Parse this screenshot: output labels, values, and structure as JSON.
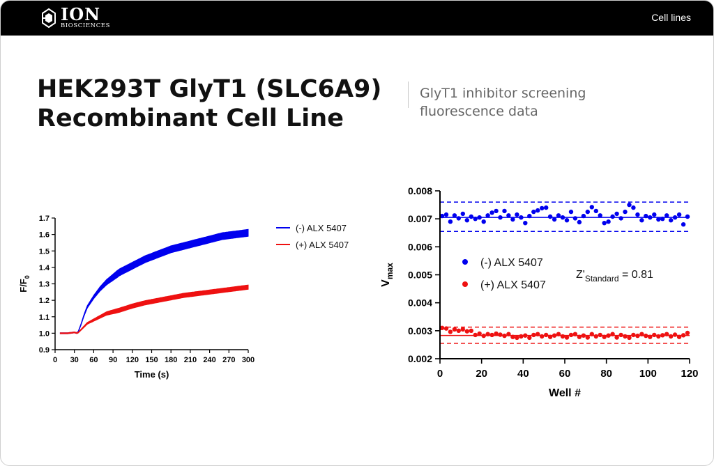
{
  "header": {
    "logo_main": "ION",
    "logo_sub": "BIOSCIENCES",
    "nav_link": "Cell lines"
  },
  "page": {
    "title_line1": "HEK293T GlyT1 (SLC6A9)",
    "title_line2": "Recombinant Cell Line",
    "subtitle_line1": "GlyT1 inhibitor screening",
    "subtitle_line2": "fluorescence data"
  },
  "colors": {
    "blue": "#0000ee",
    "red": "#ee1111",
    "axis": "#000000",
    "topbar": "#000000"
  },
  "chart_data": [
    {
      "type": "line",
      "xlabel": "Time (s)",
      "ylabel": "F/F0",
      "ylabel_main": "F/F",
      "ylabel_sub": "0",
      "xlim": [
        0,
        300
      ],
      "ylim": [
        0.9,
        1.7
      ],
      "xticks": [
        0,
        30,
        60,
        90,
        120,
        150,
        180,
        210,
        240,
        270,
        300
      ],
      "yticks": [
        "0.9",
        "1.0",
        "1.1",
        "1.2",
        "1.3",
        "1.4",
        "1.5",
        "1.6",
        "1.7"
      ],
      "grid": false,
      "legend_position": "right",
      "series": [
        {
          "name": "(-) ALX 5407",
          "color": "#0000ee",
          "x": [
            8,
            20,
            30,
            35,
            40,
            45,
            50,
            60,
            70,
            80,
            90,
            100,
            120,
            140,
            160,
            180,
            200,
            220,
            240,
            260,
            280,
            300
          ],
          "y": [
            1.0,
            1.0,
            1.005,
            1.0,
            1.05,
            1.11,
            1.16,
            1.22,
            1.27,
            1.31,
            1.34,
            1.37,
            1.41,
            1.45,
            1.48,
            1.51,
            1.53,
            1.55,
            1.57,
            1.59,
            1.6,
            1.61
          ],
          "spread": 0.018
        },
        {
          "name": "(+) ALX 5407",
          "color": "#ee1111",
          "x": [
            8,
            20,
            30,
            35,
            40,
            45,
            50,
            60,
            70,
            80,
            90,
            100,
            120,
            140,
            160,
            180,
            200,
            220,
            240,
            260,
            280,
            300
          ],
          "y": [
            1.0,
            1.0,
            1.005,
            1.0,
            1.02,
            1.04,
            1.06,
            1.08,
            1.1,
            1.12,
            1.13,
            1.14,
            1.165,
            1.185,
            1.2,
            1.215,
            1.23,
            1.24,
            1.25,
            1.26,
            1.27,
            1.28
          ],
          "spread": 0.01
        }
      ]
    },
    {
      "type": "scatter",
      "xlabel": "Well #",
      "ylabel": "Vmax",
      "ylabel_main": "V",
      "ylabel_sub": "max",
      "xlim": [
        0,
        120
      ],
      "ylim": [
        0.002,
        0.008
      ],
      "xticks": [
        0,
        20,
        40,
        60,
        80,
        100,
        120
      ],
      "yticks": [
        "0.002",
        "0.003",
        "0.004",
        "0.005",
        "0.006",
        "0.007",
        "0.008"
      ],
      "grid": false,
      "legend_position": "center",
      "annotation": {
        "main": "Z'",
        "sub": "Standard",
        "rest": " = 0.81"
      },
      "series": [
        {
          "name": "(-) ALX 5407",
          "color": "#0000ee",
          "mean": 0.00705,
          "upper": 0.0076,
          "lower": 0.00655,
          "x": [
            1,
            3,
            5,
            7,
            9,
            11,
            13,
            15,
            17,
            19,
            21,
            23,
            25,
            27,
            29,
            31,
            33,
            35,
            37,
            39,
            41,
            43,
            45,
            47,
            49,
            51,
            53,
            55,
            57,
            59,
            61,
            63,
            65,
            67,
            69,
            71,
            73,
            75,
            77,
            79,
            81,
            83,
            85,
            87,
            89,
            91,
            93,
            95,
            97,
            99,
            101,
            103,
            105,
            107,
            109,
            111,
            113,
            115,
            117,
            119
          ],
          "y": [
            0.0071,
            0.00715,
            0.0069,
            0.00712,
            0.00702,
            0.00718,
            0.00695,
            0.00708,
            0.007,
            0.00705,
            0.0069,
            0.00712,
            0.00722,
            0.00728,
            0.00705,
            0.00728,
            0.00712,
            0.00698,
            0.00715,
            0.00705,
            0.00685,
            0.0071,
            0.00725,
            0.0073,
            0.00738,
            0.0074,
            0.00708,
            0.00698,
            0.00712,
            0.00705,
            0.00695,
            0.00725,
            0.00702,
            0.00688,
            0.0071,
            0.00725,
            0.00742,
            0.00728,
            0.00712,
            0.00685,
            0.0069,
            0.00708,
            0.00718,
            0.00702,
            0.00725,
            0.0075,
            0.0074,
            0.00715,
            0.00695,
            0.0071,
            0.00705,
            0.00715,
            0.00698,
            0.007,
            0.00712,
            0.00695,
            0.00705,
            0.00715,
            0.0068,
            0.00708
          ]
        },
        {
          "name": "(+) ALX 5407",
          "color": "#ee1111",
          "mean": 0.00283,
          "upper": 0.00313,
          "lower": 0.00255,
          "x": [
            1,
            3,
            5,
            7,
            9,
            11,
            13,
            15,
            17,
            19,
            21,
            23,
            25,
            27,
            29,
            31,
            33,
            35,
            37,
            39,
            41,
            43,
            45,
            47,
            49,
            51,
            53,
            55,
            57,
            59,
            61,
            63,
            65,
            67,
            69,
            71,
            73,
            75,
            77,
            79,
            81,
            83,
            85,
            87,
            89,
            91,
            93,
            95,
            97,
            99,
            101,
            103,
            105,
            107,
            109,
            111,
            113,
            115,
            117,
            119
          ],
          "y": [
            0.0031,
            0.00308,
            0.00296,
            0.00305,
            0.003,
            0.00305,
            0.00298,
            0.003,
            0.00285,
            0.0029,
            0.00282,
            0.00288,
            0.00285,
            0.0029,
            0.00286,
            0.00282,
            0.00288,
            0.00278,
            0.00275,
            0.0028,
            0.00283,
            0.00275,
            0.00285,
            0.00288,
            0.0028,
            0.00285,
            0.00278,
            0.00283,
            0.00288,
            0.0028,
            0.00276,
            0.00285,
            0.00288,
            0.00278,
            0.00283,
            0.00276,
            0.00288,
            0.0028,
            0.00285,
            0.00278,
            0.00283,
            0.00288,
            0.00276,
            0.00285,
            0.0028,
            0.00275,
            0.00285,
            0.00282,
            0.00288,
            0.00282,
            0.00278,
            0.00285,
            0.0028,
            0.00284,
            0.00288,
            0.0028,
            0.00286,
            0.00278,
            0.00284,
            0.00292
          ]
        }
      ]
    }
  ]
}
